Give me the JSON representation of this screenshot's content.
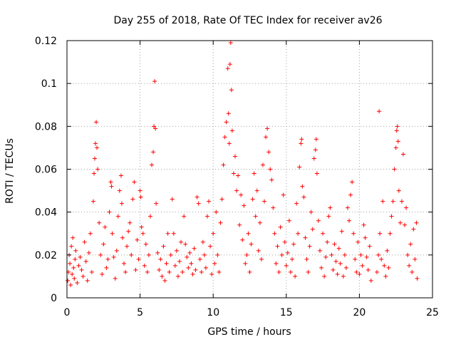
{
  "chart_data": {
    "type": "scatter",
    "title": "Day 255 of 2018, Rate Of TEC Index for receiver av26",
    "xlabel": "GPS time / hours",
    "ylabel": "ROTI / TECUs",
    "xlim": [
      0,
      25
    ],
    "ylim": [
      0,
      0.12
    ],
    "x_ticks": [
      0,
      5,
      10,
      15,
      20,
      25
    ],
    "x_tick_labels": [
      "0",
      "5",
      "10",
      "15",
      "20",
      "25"
    ],
    "y_ticks": [
      0,
      0.02,
      0.04,
      0.06,
      0.08,
      0.1,
      0.12
    ],
    "y_tick_labels": [
      "0",
      "0.02",
      "0.04",
      "0.06",
      "0.08",
      "0.1",
      "0.12"
    ],
    "grid": true,
    "marker": "+",
    "color": "#ff0000",
    "series": [
      {
        "name": "ROTI",
        "points": [
          [
            0.05,
            0.008
          ],
          [
            0.1,
            0.012
          ],
          [
            0.15,
            0.02
          ],
          [
            0.2,
            0.016
          ],
          [
            0.25,
            0.006
          ],
          [
            0.3,
            0.024
          ],
          [
            0.35,
            0.011
          ],
          [
            0.4,
            0.028
          ],
          [
            0.45,
            0.014
          ],
          [
            0.5,
            0.009
          ],
          [
            0.55,
            0.018
          ],
          [
            0.6,
            0.022
          ],
          [
            0.7,
            0.007
          ],
          [
            0.8,
            0.015
          ],
          [
            0.9,
            0.019
          ],
          [
            1.0,
            0.013
          ],
          [
            1.1,
            0.01
          ],
          [
            1.2,
            0.026
          ],
          [
            1.3,
            0.017
          ],
          [
            1.4,
            0.008
          ],
          [
            1.5,
            0.021
          ],
          [
            1.6,
            0.03
          ],
          [
            1.7,
            0.012
          ],
          [
            1.8,
            0.045
          ],
          [
            1.85,
            0.058
          ],
          [
            1.9,
            0.065
          ],
          [
            1.95,
            0.072
          ],
          [
            2.0,
            0.082
          ],
          [
            2.05,
            0.07
          ],
          [
            2.1,
            0.06
          ],
          [
            2.2,
            0.035
          ],
          [
            2.3,
            0.02
          ],
          [
            2.4,
            0.011
          ],
          [
            2.5,
            0.025
          ],
          [
            2.6,
            0.033
          ],
          [
            2.7,
            0.014
          ],
          [
            2.8,
            0.018
          ],
          [
            2.9,
            0.04
          ],
          [
            3.0,
            0.054
          ],
          [
            3.05,
            0.052
          ],
          [
            3.1,
            0.03
          ],
          [
            3.2,
            0.019
          ],
          [
            3.3,
            0.009
          ],
          [
            3.4,
            0.022
          ],
          [
            3.5,
            0.038
          ],
          [
            3.6,
            0.05
          ],
          [
            3.7,
            0.057
          ],
          [
            3.75,
            0.044
          ],
          [
            3.8,
            0.028
          ],
          [
            3.9,
            0.016
          ],
          [
            4.0,
            0.012
          ],
          [
            4.1,
            0.024
          ],
          [
            4.2,
            0.031
          ],
          [
            4.3,
            0.035
          ],
          [
            4.4,
            0.02
          ],
          [
            4.5,
            0.046
          ],
          [
            4.6,
            0.054
          ],
          [
            4.7,
            0.013
          ],
          [
            4.8,
            0.027
          ],
          [
            4.9,
            0.018
          ],
          [
            5.0,
            0.05
          ],
          [
            5.05,
            0.047
          ],
          [
            5.1,
            0.033
          ],
          [
            5.2,
            0.03
          ],
          [
            5.3,
            0.015
          ],
          [
            5.4,
            0.025
          ],
          [
            5.5,
            0.012
          ],
          [
            5.6,
            0.02
          ],
          [
            5.7,
            0.038
          ],
          [
            5.8,
            0.062
          ],
          [
            5.9,
            0.068
          ],
          [
            5.95,
            0.08
          ],
          [
            6.0,
            0.101
          ],
          [
            6.05,
            0.079
          ],
          [
            6.1,
            0.044
          ],
          [
            6.2,
            0.021
          ],
          [
            6.3,
            0.013
          ],
          [
            6.4,
            0.018
          ],
          [
            6.5,
            0.01
          ],
          [
            6.6,
            0.024
          ],
          [
            6.7,
            0.008
          ],
          [
            6.8,
            0.016
          ],
          [
            6.9,
            0.03
          ],
          [
            7.0,
            0.012
          ],
          [
            7.1,
            0.02
          ],
          [
            7.2,
            0.046
          ],
          [
            7.3,
            0.03
          ],
          [
            7.4,
            0.015
          ],
          [
            7.5,
            0.022
          ],
          [
            7.6,
            0.01
          ],
          [
            7.7,
            0.017
          ],
          [
            7.8,
            0.026
          ],
          [
            7.9,
            0.012
          ],
          [
            8.0,
            0.038
          ],
          [
            8.1,
            0.025
          ],
          [
            8.2,
            0.019
          ],
          [
            8.3,
            0.014
          ],
          [
            8.4,
            0.021
          ],
          [
            8.5,
            0.016
          ],
          [
            8.6,
            0.011
          ],
          [
            8.7,
            0.023
          ],
          [
            8.8,
            0.013
          ],
          [
            8.9,
            0.047
          ],
          [
            9.0,
            0.044
          ],
          [
            9.1,
            0.018
          ],
          [
            9.2,
            0.012
          ],
          [
            9.3,
            0.026
          ],
          [
            9.4,
            0.02
          ],
          [
            9.5,
            0.014
          ],
          [
            9.6,
            0.038
          ],
          [
            9.7,
            0.045
          ],
          [
            9.8,
            0.024
          ],
          [
            9.9,
            0.011
          ],
          [
            10.0,
            0.03
          ],
          [
            10.1,
            0.016
          ],
          [
            10.2,
            0.04
          ],
          [
            10.3,
            0.02
          ],
          [
            10.4,
            0.012
          ],
          [
            10.5,
            0.035
          ],
          [
            10.6,
            0.046
          ],
          [
            10.7,
            0.062
          ],
          [
            10.8,
            0.075
          ],
          [
            10.9,
            0.082
          ],
          [
            11.0,
            0.107
          ],
          [
            11.05,
            0.086
          ],
          [
            11.1,
            0.072
          ],
          [
            11.15,
            0.109
          ],
          [
            11.2,
            0.119
          ],
          [
            11.25,
            0.097
          ],
          [
            11.3,
            0.078
          ],
          [
            11.4,
            0.058
          ],
          [
            11.5,
            0.066
          ],
          [
            11.6,
            0.05
          ],
          [
            11.7,
            0.057
          ],
          [
            11.8,
            0.034
          ],
          [
            11.9,
            0.048
          ],
          [
            12.0,
            0.027
          ],
          [
            12.1,
            0.043
          ],
          [
            12.2,
            0.016
          ],
          [
            12.3,
            0.02
          ],
          [
            12.4,
            0.03
          ],
          [
            12.5,
            0.012
          ],
          [
            12.6,
            0.025
          ],
          [
            12.7,
            0.046
          ],
          [
            12.8,
            0.058
          ],
          [
            12.9,
            0.038
          ],
          [
            13.0,
            0.05
          ],
          [
            13.1,
            0.022
          ],
          [
            13.2,
            0.035
          ],
          [
            13.3,
            0.018
          ],
          [
            13.4,
            0.062
          ],
          [
            13.5,
            0.045
          ],
          [
            13.6,
            0.075
          ],
          [
            13.7,
            0.079
          ],
          [
            13.8,
            0.068
          ],
          [
            13.9,
            0.06
          ],
          [
            14.0,
            0.055
          ],
          [
            14.1,
            0.042
          ],
          [
            14.2,
            0.03
          ],
          [
            14.3,
            0.016
          ],
          [
            14.4,
            0.024
          ],
          [
            14.5,
            0.012
          ],
          [
            14.6,
            0.033
          ],
          [
            14.7,
            0.02
          ],
          [
            14.8,
            0.048
          ],
          [
            14.9,
            0.026
          ],
          [
            15.0,
            0.015
          ],
          [
            15.1,
            0.021
          ],
          [
            15.2,
            0.036
          ],
          [
            15.3,
            0.012
          ],
          [
            15.4,
            0.018
          ],
          [
            15.5,
            0.025
          ],
          [
            15.6,
            0.01
          ],
          [
            15.7,
            0.044
          ],
          [
            15.8,
            0.03
          ],
          [
            15.9,
            0.061
          ],
          [
            16.0,
            0.072
          ],
          [
            16.05,
            0.074
          ],
          [
            16.1,
            0.052
          ],
          [
            16.2,
            0.047
          ],
          [
            16.3,
            0.028
          ],
          [
            16.4,
            0.018
          ],
          [
            16.5,
            0.012
          ],
          [
            16.6,
            0.024
          ],
          [
            16.7,
            0.04
          ],
          [
            16.8,
            0.032
          ],
          [
            16.9,
            0.065
          ],
          [
            17.0,
            0.069
          ],
          [
            17.05,
            0.074
          ],
          [
            17.1,
            0.058
          ],
          [
            17.2,
            0.036
          ],
          [
            17.3,
            0.022
          ],
          [
            17.4,
            0.014
          ],
          [
            17.5,
            0.03
          ],
          [
            17.6,
            0.01
          ],
          [
            17.7,
            0.019
          ],
          [
            17.8,
            0.026
          ],
          [
            17.9,
            0.038
          ],
          [
            18.0,
            0.042
          ],
          [
            18.1,
            0.02
          ],
          [
            18.2,
            0.013
          ],
          [
            18.3,
            0.025
          ],
          [
            18.4,
            0.017
          ],
          [
            18.5,
            0.011
          ],
          [
            18.6,
            0.023
          ],
          [
            18.7,
            0.016
          ],
          [
            18.8,
            0.031
          ],
          [
            18.9,
            0.01
          ],
          [
            19.0,
            0.02
          ],
          [
            19.1,
            0.014
          ],
          [
            19.2,
            0.042
          ],
          [
            19.3,
            0.036
          ],
          [
            19.4,
            0.048
          ],
          [
            19.5,
            0.054
          ],
          [
            19.6,
            0.03
          ],
          [
            19.7,
            0.018
          ],
          [
            19.8,
            0.012
          ],
          [
            19.9,
            0.026
          ],
          [
            20.0,
            0.011
          ],
          [
            20.1,
            0.02
          ],
          [
            20.2,
            0.015
          ],
          [
            20.3,
            0.034
          ],
          [
            20.4,
            0.028
          ],
          [
            20.5,
            0.019
          ],
          [
            20.6,
            0.013
          ],
          [
            20.7,
            0.024
          ],
          [
            20.8,
            0.008
          ],
          [
            21.2,
            0.012
          ],
          [
            21.3,
            0.02
          ],
          [
            21.35,
            0.087
          ],
          [
            21.4,
            0.03
          ],
          [
            21.5,
            0.018
          ],
          [
            21.6,
            0.045
          ],
          [
            21.7,
            0.015
          ],
          [
            21.8,
            0.01
          ],
          [
            21.9,
            0.022
          ],
          [
            22.0,
            0.014
          ],
          [
            22.1,
            0.03
          ],
          [
            22.2,
            0.038
          ],
          [
            22.3,
            0.045
          ],
          [
            22.4,
            0.06
          ],
          [
            22.5,
            0.07
          ],
          [
            22.55,
            0.078
          ],
          [
            22.6,
            0.08
          ],
          [
            22.65,
            0.073
          ],
          [
            22.7,
            0.05
          ],
          [
            22.8,
            0.035
          ],
          [
            22.9,
            0.045
          ],
          [
            23.0,
            0.067
          ],
          [
            23.1,
            0.034
          ],
          [
            23.2,
            0.042
          ],
          [
            23.3,
            0.02
          ],
          [
            23.4,
            0.015
          ],
          [
            23.5,
            0.025
          ],
          [
            23.6,
            0.012
          ],
          [
            23.7,
            0.032
          ],
          [
            23.8,
            0.018
          ],
          [
            23.9,
            0.035
          ],
          [
            23.95,
            0.009
          ]
        ]
      }
    ]
  }
}
